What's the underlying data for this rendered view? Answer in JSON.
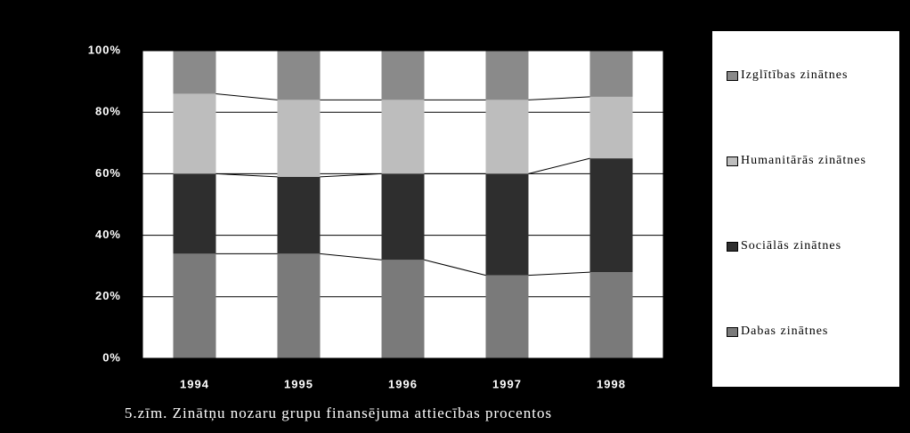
{
  "chart_data": {
    "type": "stacked_bar",
    "title": "5.zīm. Zinātņu nozaru grupu finansējuma attiecības procentos",
    "categories": [
      "1994",
      "1995",
      "1996",
      "1997",
      "1998"
    ],
    "series": [
      {
        "name": "Dabas zinātnes",
        "color": "#7a7a7a",
        "values": [
          34,
          34,
          32,
          27,
          28
        ]
      },
      {
        "name": "Sociālās zinātnes",
        "color": "#2e2e2e",
        "values": [
          26,
          25,
          28,
          33,
          37
        ]
      },
      {
        "name": "Humanitārās zinātnes",
        "color": "#bdbdbd",
        "values": [
          26,
          25,
          24,
          24,
          20
        ]
      },
      {
        "name": "Izglītības zinātnes",
        "color": "#8a8a8a",
        "values": [
          14,
          16,
          16,
          16,
          15
        ]
      }
    ],
    "ylim": [
      0,
      100
    ],
    "yticks": [
      {
        "value": 0,
        "label": "0%"
      },
      {
        "value": 20,
        "label": "20%"
      },
      {
        "value": 40,
        "label": "40%"
      },
      {
        "value": 60,
        "label": "60%"
      },
      {
        "value": 80,
        "label": "80%"
      },
      {
        "value": 100,
        "label": "100%"
      }
    ],
    "grid": true
  }
}
